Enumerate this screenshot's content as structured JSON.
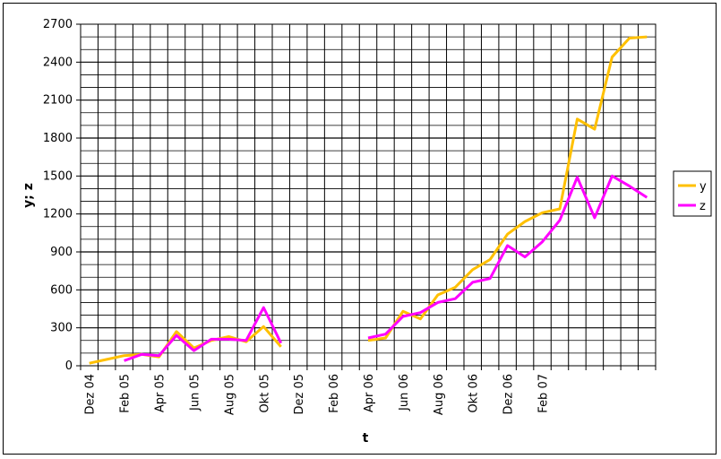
{
  "chart_data": {
    "type": "line",
    "xlabel": "t",
    "ylabel": "y; z",
    "ylim": [
      0,
      2700
    ],
    "yticks": [
      0,
      300,
      600,
      900,
      1200,
      1500,
      1800,
      2100,
      2400,
      2700
    ],
    "grid": true,
    "legend": "right",
    "x_start_label": "Dez 04",
    "x_tick_labels": [
      "Dez 04",
      "Feb 05",
      "Apr 05",
      "Jun 05",
      "Aug 05",
      "Okt 05",
      "Dez 05",
      "Feb 06",
      "Apr 06",
      "Jun 06",
      "Aug 06",
      "Okt 06",
      "Dez 06",
      "Feb 07"
    ],
    "series": [
      {
        "name": "y",
        "color": "#ffc000",
        "values": [
          20,
          50,
          80,
          90,
          70,
          270,
          140,
          200,
          230,
          190,
          310,
          150,
          null,
          null,
          null,
          null,
          200,
          220,
          430,
          370,
          560,
          620,
          760,
          840,
          1040,
          1140,
          1210,
          1240,
          1950,
          1870,
          2440,
          2590,
          2600
        ]
      },
      {
        "name": "z",
        "color": "#ff00ff",
        "values": [
          null,
          null,
          40,
          90,
          80,
          240,
          120,
          210,
          210,
          200,
          460,
          180,
          null,
          null,
          null,
          null,
          220,
          250,
          390,
          420,
          500,
          530,
          660,
          690,
          950,
          860,
          980,
          1150,
          1490,
          1170,
          1500,
          1420,
          1330
        ]
      }
    ]
  }
}
